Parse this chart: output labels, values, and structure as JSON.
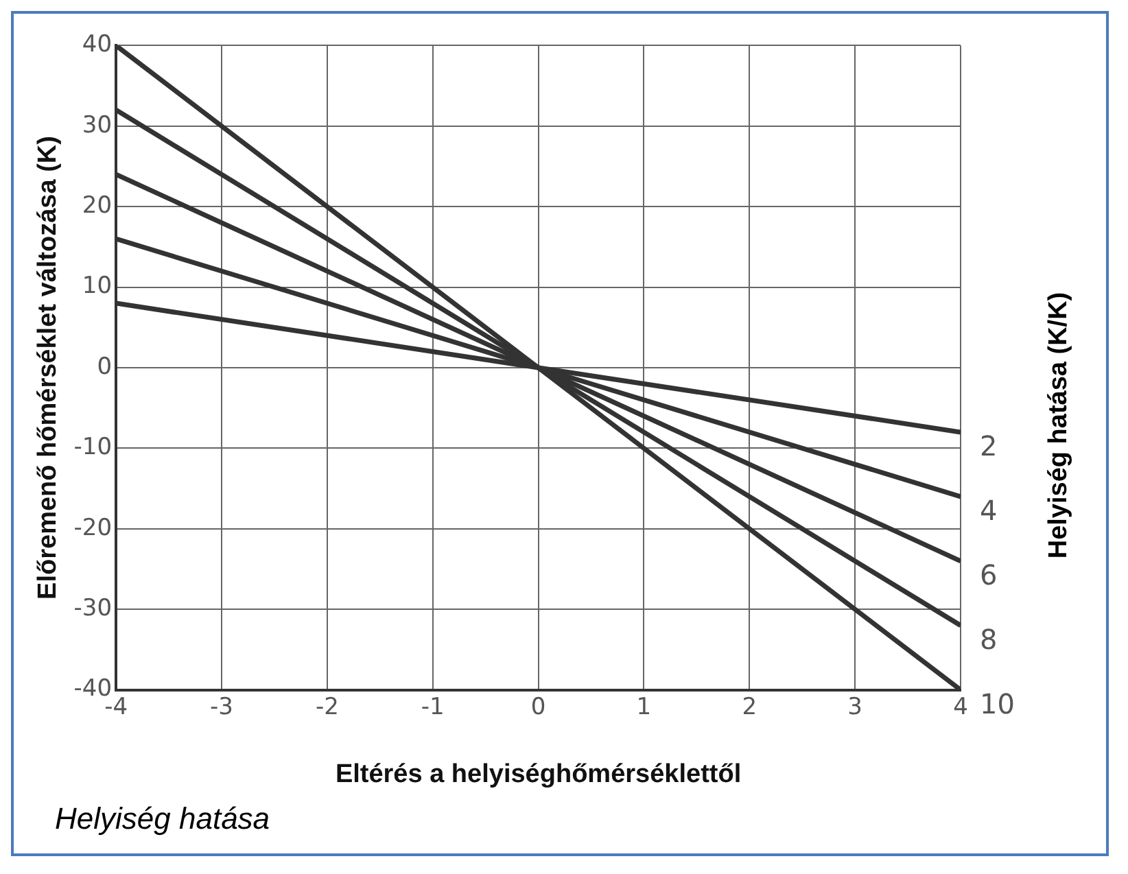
{
  "chart_data": {
    "type": "line",
    "xlabel": "Eltérés a helyiséghőmérséklettől",
    "ylabel": "Előremenő hőmérséklet változása (K)",
    "y2label": "Helyiség hatása (K/K)",
    "annotations": [
      "Helyiség hatása"
    ],
    "x": [
      -4,
      0,
      4
    ],
    "xlim": [
      -4,
      4
    ],
    "xticks": [
      -4,
      -3,
      -2,
      -1,
      0,
      1,
      2,
      3,
      4
    ],
    "ylim": [
      -40,
      40
    ],
    "yticks": [
      -40,
      -30,
      -20,
      -10,
      0,
      10,
      20,
      30,
      40
    ],
    "grid": true,
    "legend": false,
    "marker": "none",
    "line_style": "solid",
    "series": [
      {
        "name": "2",
        "color": "#333333",
        "values": [
          8,
          0,
          -8
        ]
      },
      {
        "name": "4",
        "color": "#333333",
        "values": [
          16,
          0,
          -16
        ]
      },
      {
        "name": "6",
        "color": "#333333",
        "values": [
          24,
          0,
          -24
        ]
      },
      {
        "name": "8",
        "color": "#333333",
        "values": [
          32,
          0,
          -32
        ]
      },
      {
        "name": "10",
        "color": "#333333",
        "values": [
          40,
          0,
          -40
        ]
      }
    ]
  }
}
